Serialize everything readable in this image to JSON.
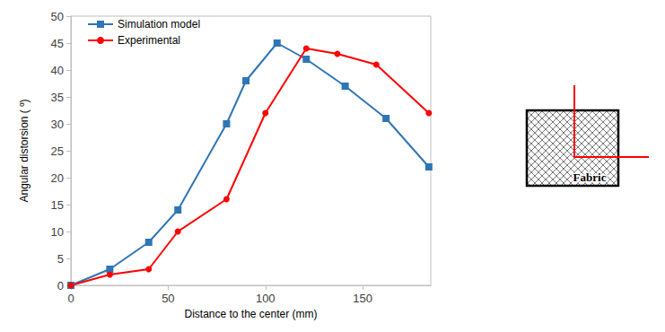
{
  "chart_data": {
    "type": "line",
    "x_label": "Distance to the center (mm)",
    "y_label": "Angular distorsion ( º)",
    "xlim": [
      0,
      185
    ],
    "xticks": [
      0,
      50,
      100,
      150
    ],
    "ylim": [
      0,
      50
    ],
    "yticks": [
      0,
      5,
      10,
      15,
      20,
      25,
      30,
      35,
      40,
      45,
      50
    ],
    "grid": false,
    "legend": "upper left",
    "series": [
      {
        "name": "Simulation model",
        "color": "#2e75b6",
        "marker": "square",
        "line_style": "solid",
        "x": [
          0,
          20,
          40,
          55,
          80,
          90,
          106,
          121,
          141,
          162,
          184
        ],
        "values": [
          0,
          3,
          8,
          14,
          30,
          38,
          45,
          42,
          37,
          31,
          22
        ]
      },
      {
        "name": "Experimental",
        "color": "#ff0000",
        "marker": "circle",
        "line_style": "solid",
        "x": [
          0,
          20,
          40,
          55,
          80,
          100,
          121,
          137,
          157,
          184
        ],
        "values": [
          0,
          2,
          3,
          10,
          16,
          32,
          44,
          43,
          41,
          32
        ]
      }
    ],
    "annotations": [
      "Fabric"
    ]
  }
}
